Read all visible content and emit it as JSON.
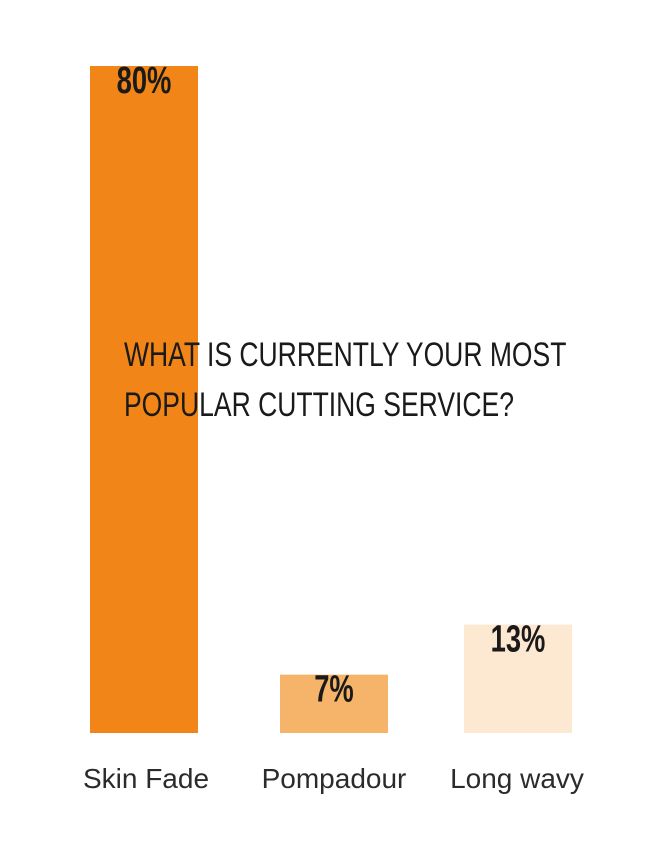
{
  "chart_data": {
    "type": "bar",
    "title": [
      "WHAT IS CURRENTLY YOUR MOST",
      "POPULAR CUTTING SERVICE?"
    ],
    "categories": [
      "Skin Fade",
      "Pompadour",
      "Long wavy"
    ],
    "values": [
      80,
      7,
      13
    ],
    "value_labels": [
      "80%",
      "7%",
      "13%"
    ],
    "colors": [
      "#f28517",
      "#f6b46a",
      "#fde8d1"
    ],
    "ylim": [
      0,
      80
    ],
    "grid": false
  }
}
